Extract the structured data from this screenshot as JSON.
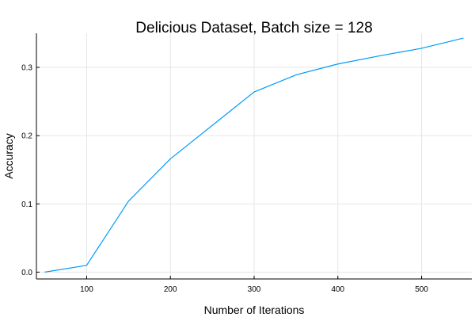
{
  "chart_data": {
    "type": "line",
    "title": "Delicious Dataset, Batch size = 128",
    "xlabel": "Number of Iterations",
    "ylabel": "Accuracy",
    "xlim": [
      40,
      560
    ],
    "ylim": [
      -0.01,
      0.35
    ],
    "xticks": [
      100,
      200,
      300,
      400,
      500
    ],
    "yticks": [
      0.0,
      0.1,
      0.2,
      0.3
    ],
    "xtick_labels": [
      "100",
      "200",
      "300",
      "400",
      "500"
    ],
    "ytick_labels": [
      "0.0",
      "0.1",
      "0.2",
      "0.3"
    ],
    "grid": true,
    "legend": "none",
    "series": [
      {
        "color": "#009AFA",
        "x": [
          50,
          100,
          150,
          200,
          250,
          300,
          350,
          400,
          450,
          500,
          550
        ],
        "y": [
          0.0,
          0.01,
          0.104,
          0.166,
          0.215,
          0.264,
          0.289,
          0.305,
          0.317,
          0.328,
          0.343
        ]
      }
    ]
  }
}
